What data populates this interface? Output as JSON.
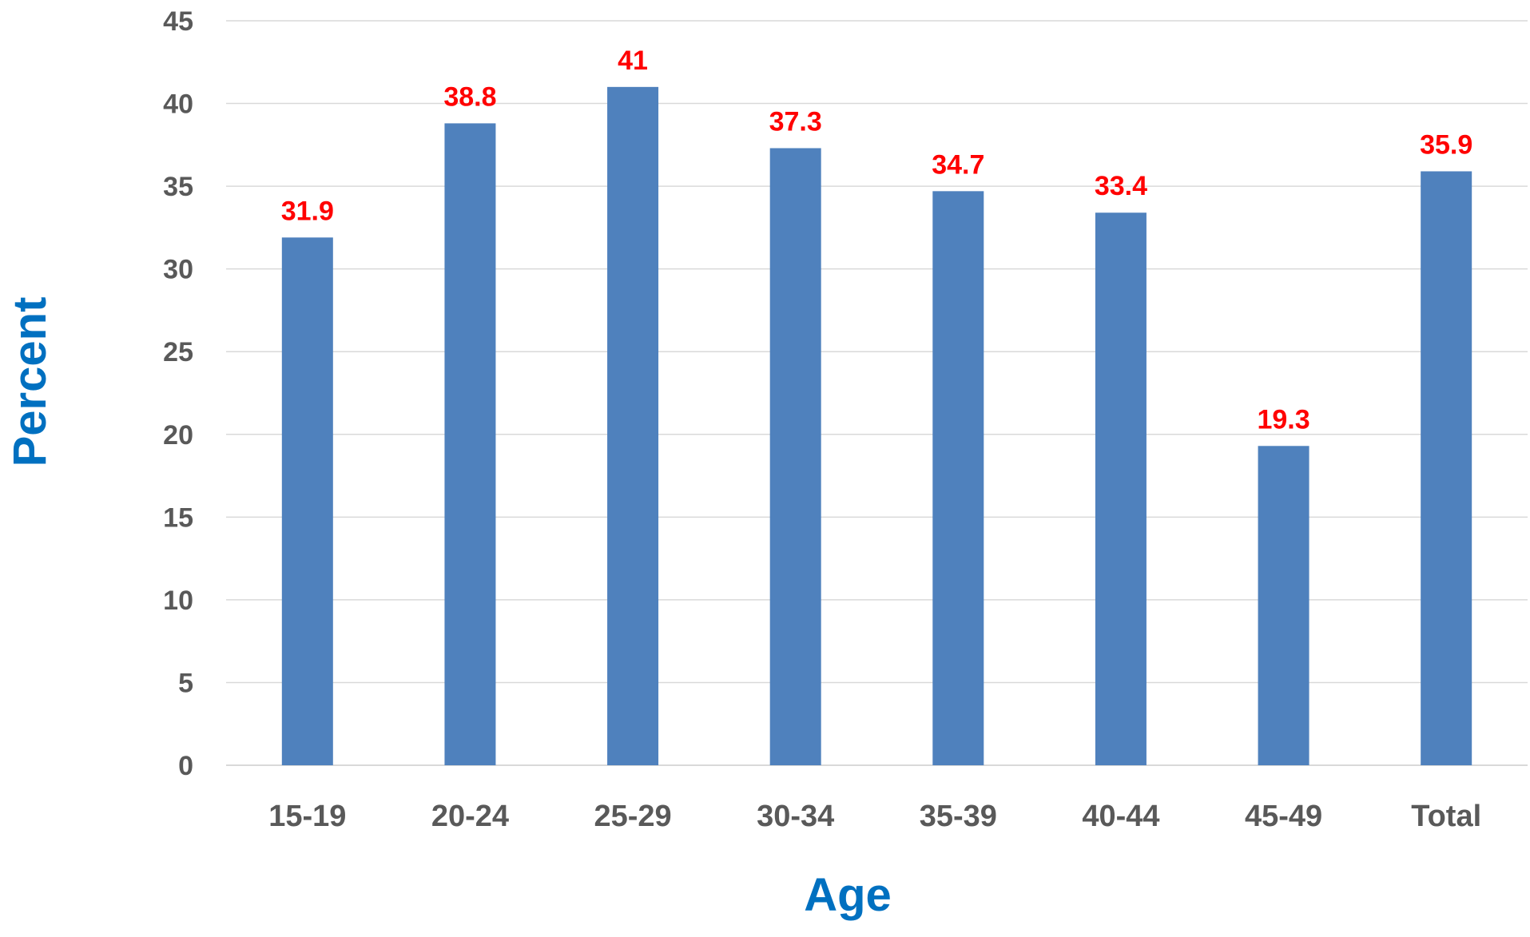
{
  "chart_data": {
    "type": "bar",
    "title": "",
    "xlabel": "Age",
    "ylabel": "Percent",
    "categories": [
      "15-19",
      "20-24",
      "25-29",
      "30-34",
      "35-39",
      "40-44",
      "45-49",
      "Total"
    ],
    "values": [
      31.9,
      38.8,
      41,
      37.3,
      34.7,
      33.4,
      19.3,
      35.9
    ],
    "data_labels": [
      "31.9",
      "38.8",
      "41",
      "37.3",
      "34.7",
      "33.4",
      "19.3",
      "35.9"
    ],
    "ylim": [
      0,
      45
    ],
    "yticks": [
      "0",
      "5",
      "10",
      "15",
      "20",
      "25",
      "30",
      "35",
      "40",
      "45"
    ],
    "grid": true,
    "legend": "none"
  },
  "colors": {
    "bar": "#4F81BD",
    "data_label": "#FF0000",
    "axis_title": "#0070C0",
    "tick_label": "#595959",
    "gridline": "#D9D9D9"
  }
}
